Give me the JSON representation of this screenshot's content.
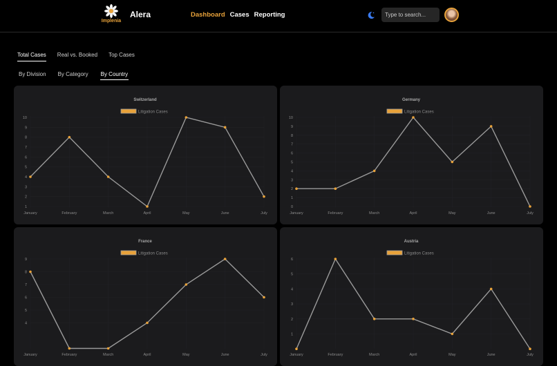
{
  "header": {
    "logo_text": "Implenia",
    "app_title": "Alera",
    "nav": [
      {
        "label": "Dashboard",
        "active": true
      },
      {
        "label": "Cases",
        "active": false
      },
      {
        "label": "Reporting",
        "active": false
      }
    ],
    "theme_icon": "moon-icon",
    "search_placeholder": "Type to search...",
    "search_value": "",
    "accent_color": "#e8a23a"
  },
  "tabs": [
    {
      "label": "Total Cases",
      "active": true
    },
    {
      "label": "Real vs. Booked",
      "active": false
    },
    {
      "label": "Top Cases",
      "active": false
    }
  ],
  "subtabs": [
    {
      "label": "By Division",
      "active": false
    },
    {
      "label": "By Category",
      "active": false
    },
    {
      "label": "By Country",
      "active": true
    }
  ],
  "chart_data": [
    {
      "type": "line",
      "title": "Switzerland",
      "categories": [
        "January",
        "February",
        "March",
        "April",
        "May",
        "June",
        "July"
      ],
      "series": [
        {
          "name": "Litigation Cases",
          "values": [
            4,
            8,
            4,
            1,
            10,
            9,
            2
          ]
        }
      ],
      "yticks": [
        1,
        2,
        3,
        4,
        5,
        6,
        7,
        8,
        9,
        10
      ],
      "ylim": [
        1,
        10
      ],
      "legend_position": "top",
      "grid": true,
      "line_color": "#9a9a9a",
      "point_color": "#e8a23a"
    },
    {
      "type": "line",
      "title": "Germany",
      "categories": [
        "January",
        "February",
        "March",
        "April",
        "May",
        "June",
        "July"
      ],
      "series": [
        {
          "name": "Litigation Cases",
          "values": [
            2,
            2,
            4,
            10,
            5,
            9,
            0
          ]
        }
      ],
      "yticks": [
        0,
        1,
        2,
        3,
        4,
        5,
        6,
        7,
        8,
        9,
        10
      ],
      "ylim": [
        0,
        10
      ],
      "legend_position": "top",
      "grid": true,
      "line_color": "#9a9a9a",
      "point_color": "#e8a23a"
    },
    {
      "type": "line",
      "title": "France",
      "categories": [
        "January",
        "February",
        "March",
        "April",
        "May",
        "June",
        "July"
      ],
      "series": [
        {
          "name": "Litigation Cases",
          "values": [
            8,
            2,
            2,
            4,
            7,
            9,
            6
          ]
        }
      ],
      "yticks": [
        4,
        5,
        6,
        7,
        8,
        9
      ],
      "ylim": [
        2,
        9
      ],
      "legend_position": "top",
      "grid": true,
      "line_color": "#9a9a9a",
      "point_color": "#e8a23a"
    },
    {
      "type": "line",
      "title": "Austria",
      "categories": [
        "January",
        "February",
        "March",
        "April",
        "May",
        "June",
        "July"
      ],
      "series": [
        {
          "name": "Litigation Cases",
          "values": [
            0,
            6,
            2,
            2,
            1,
            4,
            0
          ]
        }
      ],
      "yticks": [
        1,
        2,
        3,
        4,
        5,
        6
      ],
      "ylim": [
        0,
        6
      ],
      "legend_position": "top",
      "grid": true,
      "line_color": "#9a9a9a",
      "point_color": "#e8a23a"
    }
  ]
}
